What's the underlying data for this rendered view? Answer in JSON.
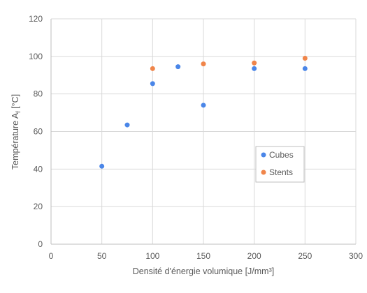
{
  "chart_data": {
    "type": "scatter",
    "xlabel": "Densité d'énergie volumique [J/mm³]",
    "ylabel": "Température A",
    "ylabel_subscript": "f",
    "ylabel_unit": " [°C]",
    "xlim": [
      0,
      300
    ],
    "ylim": [
      0,
      120
    ],
    "x_ticks": [
      "0",
      "50",
      "100",
      "150",
      "200",
      "250",
      "300"
    ],
    "y_ticks": [
      "0",
      "20",
      "40",
      "60",
      "80",
      "100",
      "120"
    ],
    "grid": "vertical and horizontal",
    "legend_position": "right-center",
    "series": [
      {
        "name": "Cubes",
        "color": "#4a86e8",
        "points": [
          [
            50,
            41.5
          ],
          [
            75,
            63.5
          ],
          [
            100,
            85.5
          ],
          [
            125,
            94.5
          ],
          [
            150,
            74
          ],
          [
            200,
            93.5
          ],
          [
            250,
            93.5
          ]
        ]
      },
      {
        "name": "Stents",
        "color": "#f0854a",
        "points": [
          [
            100,
            93.5
          ],
          [
            150,
            96
          ],
          [
            200,
            96.5
          ],
          [
            250,
            99
          ]
        ]
      }
    ]
  }
}
